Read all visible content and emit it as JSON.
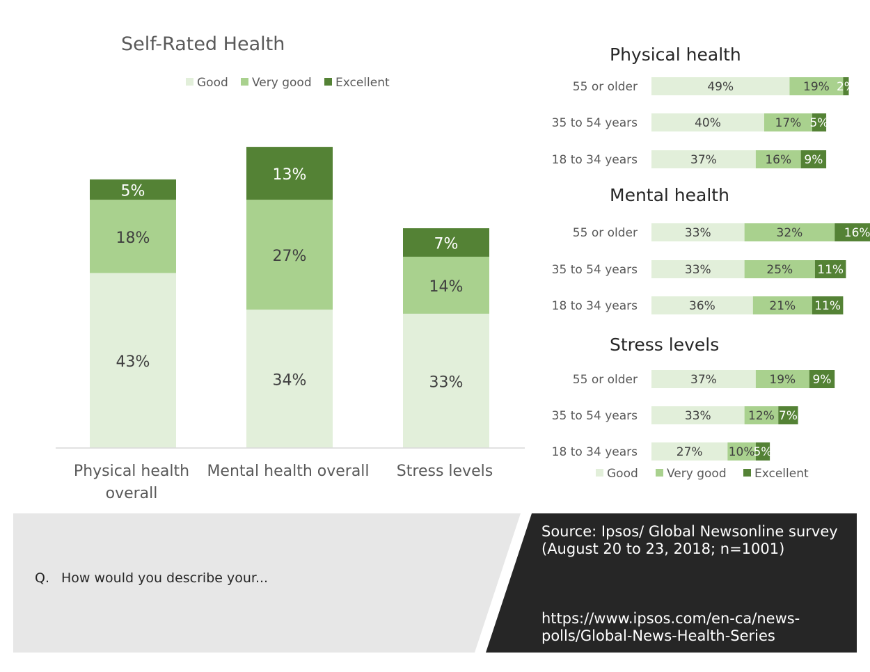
{
  "colors": {
    "good": "#e2efda",
    "very_good": "#a9d18e",
    "excellent": "#548235",
    "footer_grey": "#e7e7e7",
    "footer_dark": "#262626",
    "axis": "#d9d9d9",
    "label_dark": "#404040",
    "label_light": "#ffffff"
  },
  "footer": {
    "question_prefix": "Q.",
    "question": "How would you describe your...",
    "source": "Source: Ipsos/ Global Newsonline survey (August 20 to 23, 2018; n=1001)",
    "url": "https://www.ipsos.com/en-ca/news-polls/Global-News-Health-Series"
  },
  "chart_data": [
    {
      "type": "bar",
      "stacked": true,
      "title": "Self-Rated Health",
      "legend": [
        "Good",
        "Very good",
        "Excellent"
      ],
      "legend_position": "top",
      "categories": [
        "Physical health overall",
        "Mental health overall",
        "Stress levels"
      ],
      "category_lines": [
        [
          "Physical health",
          "overall"
        ],
        [
          "Mental health overall"
        ],
        [
          "Stress levels"
        ]
      ],
      "series": [
        {
          "name": "Good",
          "values": [
            43,
            34,
            33
          ],
          "labels": [
            "43%",
            "34%",
            "33%"
          ]
        },
        {
          "name": "Very good",
          "values": [
            18,
            27,
            14
          ],
          "labels": [
            "18%",
            "27%",
            "14%"
          ]
        },
        {
          "name": "Excellent",
          "values": [
            5,
            13,
            7
          ],
          "labels": [
            "5%",
            "13%",
            "7%"
          ]
        }
      ],
      "ylim": [
        0,
        80
      ],
      "grid": false
    },
    {
      "type": "bar",
      "orientation": "horizontal",
      "stacked": true,
      "title": "Physical health",
      "categories": [
        "55 or older",
        "35 to 54 years",
        "18 to 34 years"
      ],
      "series": [
        {
          "name": "Good",
          "values": [
            49,
            40,
            37
          ],
          "labels": [
            "49%",
            "40%",
            "37%"
          ]
        },
        {
          "name": "Very good",
          "values": [
            19,
            17,
            16
          ],
          "labels": [
            "19%",
            "17%",
            "16%"
          ]
        },
        {
          "name": "Excellent",
          "values": [
            2,
            5,
            9
          ],
          "labels": [
            "2%",
            "5%",
            "9%"
          ]
        }
      ],
      "xlim": [
        0,
        90
      ]
    },
    {
      "type": "bar",
      "orientation": "horizontal",
      "stacked": true,
      "title": "Mental health",
      "categories": [
        "55 or older",
        "35 to 54 years",
        "18 to 34 years"
      ],
      "series": [
        {
          "name": "Good",
          "values": [
            33,
            33,
            36
          ],
          "labels": [
            "33%",
            "33%",
            "36%"
          ]
        },
        {
          "name": "Very good",
          "values": [
            32,
            25,
            21
          ],
          "labels": [
            "32%",
            "25%",
            "21%"
          ]
        },
        {
          "name": "Excellent",
          "values": [
            16,
            11,
            11
          ],
          "labels": [
            "16%",
            "11%",
            "11%"
          ]
        }
      ],
      "xlim": [
        0,
        90
      ]
    },
    {
      "type": "bar",
      "orientation": "horizontal",
      "stacked": true,
      "title": "Stress levels",
      "categories": [
        "55 or older",
        "35 to 54 years",
        "18 to 34 years"
      ],
      "series": [
        {
          "name": "Good",
          "values": [
            37,
            33,
            27
          ],
          "labels": [
            "37%",
            "33%",
            "27%"
          ]
        },
        {
          "name": "Very good",
          "values": [
            19,
            12,
            10
          ],
          "labels": [
            "19%",
            "12%",
            "10%"
          ]
        },
        {
          "name": "Excellent",
          "values": [
            9,
            7,
            5
          ],
          "labels": [
            "9%",
            "7%",
            "5%"
          ]
        }
      ],
      "legend": [
        "Good",
        "Very good",
        "Excellent"
      ],
      "legend_position": "bottom",
      "xlim": [
        0,
        90
      ]
    }
  ]
}
